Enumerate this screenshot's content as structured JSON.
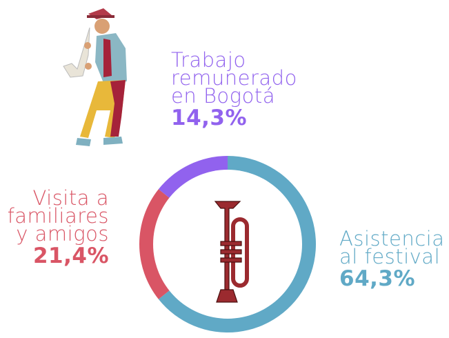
{
  "chart_data": {
    "type": "donut",
    "categories": [
      "Asistencia al festival",
      "Visita a familiares y amigos",
      "Trabajo remunerado en Bogotá"
    ],
    "values": [
      64.3,
      21.4,
      14.3
    ],
    "value_labels": [
      "64,3%",
      "21,4%",
      "14,3%"
    ],
    "colors": [
      "#60a9c6",
      "#d95565",
      "#9162ee"
    ]
  }
}
